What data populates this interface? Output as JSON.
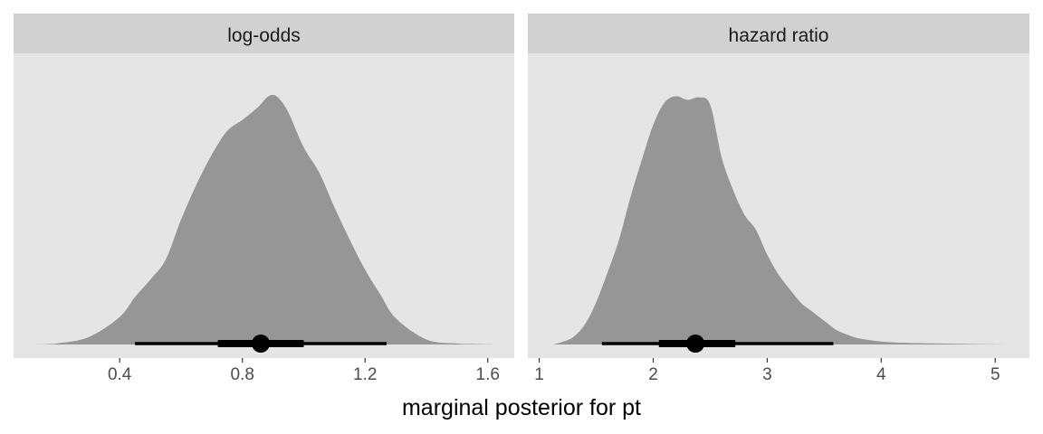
{
  "chart_data": {
    "type": "area",
    "chart_subtype": "faceted posterior density (halfeye) with point estimate and 66% / 95% intervals",
    "xlabel": "marginal posterior for pt",
    "ylabel": "",
    "grid": false,
    "colors": {
      "panel_background": "#e5e5e5",
      "strip_background": "#d1d1d1",
      "density_fill": "#969696",
      "interval": "#000000"
    },
    "facets": [
      {
        "strip": "log-odds",
        "xlim": [
          0.0542,
          1.6863
        ],
        "x_ticks": [
          0.4,
          0.8,
          1.2,
          1.6
        ],
        "x_tick_labels": [
          "0.4",
          "0.8",
          "1.2",
          "1.6"
        ],
        "density": {
          "x": [
            0.13,
            0.2,
            0.3,
            0.4,
            0.45,
            0.5,
            0.55,
            0.6,
            0.65,
            0.7,
            0.75,
            0.8,
            0.85,
            0.88,
            0.9,
            0.92,
            0.95,
            1.0,
            1.05,
            1.1,
            1.15,
            1.2,
            1.25,
            1.3,
            1.4,
            1.5,
            1.56,
            1.64
          ],
          "y": [
            0.0,
            0.005,
            0.03,
            0.11,
            0.19,
            0.26,
            0.34,
            0.5,
            0.64,
            0.76,
            0.855,
            0.9,
            0.95,
            0.99,
            1.0,
            0.985,
            0.93,
            0.79,
            0.69,
            0.55,
            0.42,
            0.3,
            0.2,
            0.105,
            0.02,
            0.004,
            0.002,
            0.0
          ]
        },
        "point_estimate": 0.86,
        "interval_66": [
          0.72,
          1.0
        ],
        "interval_95": [
          0.45,
          1.27
        ]
      },
      {
        "strip": "hazard ratio",
        "xlim": [
          0.9,
          5.3
        ],
        "x_ticks": [
          1,
          2,
          3,
          4,
          5
        ],
        "x_tick_labels": [
          "1",
          "2",
          "3",
          "4",
          "5"
        ],
        "density": {
          "x": [
            1.12,
            1.2,
            1.3,
            1.4,
            1.5,
            1.6,
            1.7,
            1.8,
            1.9,
            2.0,
            2.1,
            2.2,
            2.3,
            2.4,
            2.5,
            2.6,
            2.7,
            2.8,
            2.9,
            3.0,
            3.1,
            3.2,
            3.3,
            3.4,
            3.5,
            3.6,
            3.7,
            3.8,
            4.0,
            4.2,
            4.5,
            4.8,
            5.13
          ],
          "y": [
            0.0,
            0.01,
            0.03,
            0.08,
            0.17,
            0.29,
            0.42,
            0.59,
            0.74,
            0.88,
            0.97,
            0.995,
            0.98,
            0.99,
            0.96,
            0.75,
            0.62,
            0.52,
            0.46,
            0.36,
            0.28,
            0.22,
            0.165,
            0.13,
            0.095,
            0.06,
            0.04,
            0.025,
            0.012,
            0.007,
            0.004,
            0.002,
            0.0
          ]
        },
        "point_estimate": 2.37,
        "interval_66": [
          2.05,
          2.72
        ],
        "interval_95": [
          1.55,
          3.58
        ]
      }
    ]
  }
}
